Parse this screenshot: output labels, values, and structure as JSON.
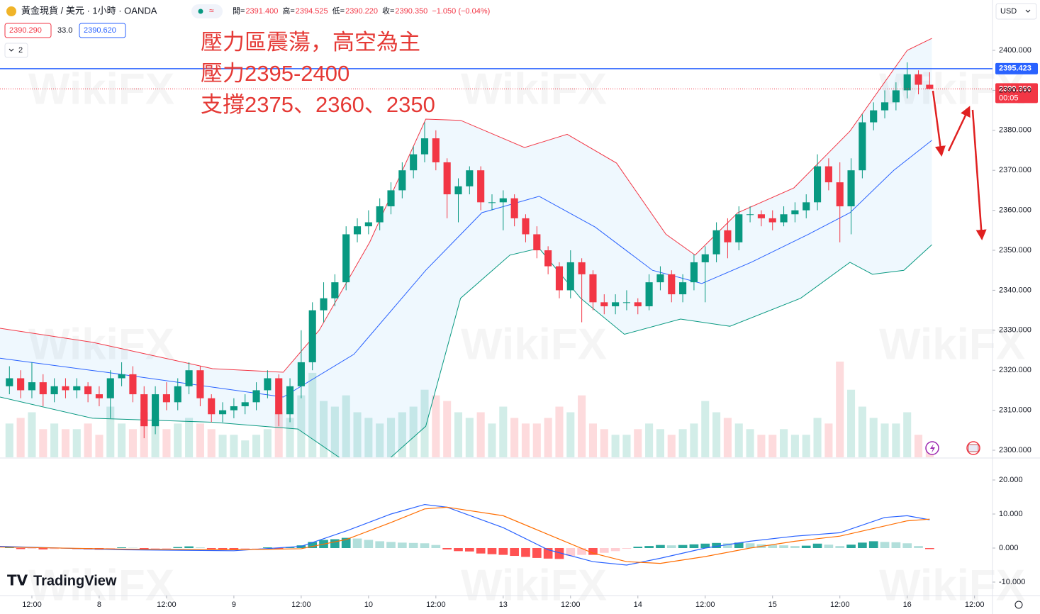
{
  "header": {
    "symbol": "黃金現貨 / 美元 · 1小時 · OANDA",
    "ohlc": [
      {
        "label": "開=",
        "value": "2391.400"
      },
      {
        "label": "高=",
        "value": "2394.525"
      },
      {
        "label": "低=",
        "value": "2390.220"
      },
      {
        "label": "收=",
        "value": "2390.350"
      }
    ],
    "change": "−1.050 (−0.04%)",
    "bid": "2390.290",
    "spread": "33.0",
    "ask": "2390.620",
    "indicators": "2",
    "currency": "USD",
    "brand": "TradingView",
    "watermark": "WikiFX"
  },
  "chart_data": [
    {
      "type": "candlestick",
      "annotations": [
        "壓力區震蕩，高空為主",
        "壓力2395-2400",
        "支撐2375、2360、2350"
      ],
      "up_color": "#089981",
      "down_color": "#f23645",
      "xlim": [
        -0.84,
        87.6
      ],
      "xticks": [
        {
          "value": 2,
          "label": "12:00"
        },
        {
          "value": 8,
          "label": "8"
        },
        {
          "value": 14,
          "label": "12:00"
        },
        {
          "value": 20,
          "label": "9"
        },
        {
          "value": 26,
          "label": "12:00"
        },
        {
          "value": 32,
          "label": "10"
        },
        {
          "value": 38,
          "label": "12:00"
        },
        {
          "value": 44,
          "label": "13"
        },
        {
          "value": 50,
          "label": "12:00"
        },
        {
          "value": 56,
          "label": "14"
        },
        {
          "value": 62,
          "label": "12:00"
        },
        {
          "value": 68,
          "label": "15"
        },
        {
          "value": 74,
          "label": "12:00"
        },
        {
          "value": 80,
          "label": "16"
        },
        {
          "value": 86,
          "label": "12:00"
        }
      ],
      "ylim": [
        2298.23,
        2412.59
      ],
      "yticks": [
        {
          "value": 2300,
          "label": "2300.000"
        },
        {
          "value": 2310,
          "label": "2310.000"
        },
        {
          "value": 2320,
          "label": "2320.000"
        },
        {
          "value": 2330,
          "label": "2330.000"
        },
        {
          "value": 2340,
          "label": "2340.000"
        },
        {
          "value": 2350,
          "label": "2350.000"
        },
        {
          "value": 2360,
          "label": "2360.000"
        },
        {
          "value": 2370,
          "label": "2370.000"
        },
        {
          "value": 2380,
          "label": "2380.000"
        },
        {
          "value": 2390,
          "label": "2390.000"
        },
        {
          "value": 2400,
          "label": "2400.000"
        }
      ],
      "open": [
        2316,
        2318,
        2315,
        2317,
        2314,
        2316,
        2315,
        2316,
        2314,
        2313,
        2318,
        2319,
        2314,
        2306,
        2314,
        2312,
        2316,
        2320,
        2313,
        2309,
        2310,
        2311,
        2312,
        2315,
        2318,
        2309,
        2316,
        2322,
        2335,
        2338,
        2342,
        2354,
        2356,
        2357,
        2361,
        2365,
        2370,
        2374,
        2378,
        2372,
        2364,
        2366,
        2370,
        2362,
        2362,
        2363,
        2358,
        2354,
        2350,
        2346,
        2340,
        2347,
        2344,
        2337,
        2336,
        2337,
        2337,
        2336,
        2342,
        2344,
        2339,
        2342,
        2347,
        2349,
        2355,
        2352,
        2359,
        2359,
        2358,
        2357,
        2359,
        2360,
        2362,
        2371,
        2367,
        2361,
        2370,
        2382,
        2385,
        2387,
        2390,
        2394,
        2391.4
      ],
      "high": [
        2321,
        2320,
        2322,
        2319,
        2318,
        2318,
        2318,
        2317,
        2316,
        2320,
        2322,
        2321,
        2316,
        2316,
        2317,
        2318,
        2322,
        2321,
        2314,
        2312,
        2313,
        2314,
        2317,
        2320,
        2319,
        2318,
        2330,
        2337,
        2342,
        2344,
        2356,
        2358,
        2360,
        2363,
        2367,
        2372,
        2376,
        2382,
        2380,
        2373,
        2368,
        2371,
        2371,
        2364,
        2365,
        2364,
        2359,
        2356,
        2351,
        2347,
        2350,
        2348,
        2345,
        2339,
        2339,
        2340,
        2338,
        2344,
        2346,
        2345,
        2344,
        2349,
        2351,
        2357,
        2358,
        2361,
        2361,
        2360,
        2360,
        2361,
        2362,
        2364,
        2374,
        2373,
        2372,
        2373,
        2384,
        2387,
        2390,
        2392,
        2397,
        2395,
        2394.525
      ],
      "low": [
        2314,
        2313,
        2313,
        2311,
        2312,
        2313,
        2313,
        2312,
        2311,
        2308,
        2316,
        2312,
        2303,
        2304,
        2310,
        2310,
        2314,
        2311,
        2307,
        2307,
        2308,
        2309,
        2310,
        2313,
        2306,
        2307,
        2313,
        2320,
        2332,
        2336,
        2340,
        2352,
        2354,
        2355,
        2359,
        2363,
        2368,
        2372,
        2370,
        2358,
        2357,
        2364,
        2360,
        2360,
        2355,
        2356,
        2352,
        2348,
        2344,
        2338,
        2338,
        2332,
        2335,
        2334,
        2334,
        2335,
        2334,
        2335,
        2340,
        2337,
        2337,
        2340,
        2337,
        2347,
        2348,
        2350,
        2357,
        2356,
        2355,
        2356,
        2357,
        2358,
        2360,
        2365,
        2352,
        2354,
        2368,
        2380,
        2383,
        2385,
        2388,
        2389,
        2390.22
      ],
      "close": [
        2318,
        2315,
        2317,
        2314,
        2316,
        2315,
        2316,
        2314,
        2313,
        2318,
        2319,
        2314,
        2306,
        2314,
        2312,
        2316,
        2320,
        2313,
        2309,
        2310,
        2311,
        2312,
        2315,
        2318,
        2309,
        2316,
        2322,
        2335,
        2338,
        2342,
        2354,
        2356,
        2357,
        2361,
        2365,
        2370,
        2374,
        2378,
        2372,
        2364,
        2366,
        2370,
        2362,
        2362,
        2363,
        2358,
        2354,
        2350,
        2346,
        2340,
        2347,
        2344,
        2337,
        2336,
        2337,
        2337,
        2336,
        2342,
        2344,
        2339,
        2342,
        2347,
        2349,
        2355,
        2352,
        2359,
        2359,
        2358,
        2357,
        2359,
        2360,
        2362,
        2371,
        2367,
        2361,
        2370,
        2382,
        2385,
        2387,
        2390,
        2394,
        2391.4,
        2390.35
      ],
      "volume": [
        30,
        35,
        40,
        25,
        30,
        25,
        25,
        30,
        20,
        45,
        30,
        25,
        40,
        35,
        25,
        30,
        35,
        30,
        25,
        20,
        20,
        15,
        20,
        25,
        40,
        35,
        55,
        75,
        50,
        45,
        55,
        40,
        35,
        30,
        35,
        40,
        45,
        60,
        55,
        50,
        40,
        35,
        40,
        30,
        45,
        35,
        30,
        30,
        35,
        45,
        40,
        55,
        30,
        25,
        20,
        20,
        25,
        30,
        25,
        20,
        25,
        30,
        50,
        40,
        35,
        30,
        25,
        20,
        20,
        25,
        20,
        20,
        35,
        30,
        85,
        60,
        45,
        35,
        30,
        30,
        40,
        20,
        10
      ],
      "volume_colors": [
        "rgba(8,153,129,0.18)",
        "rgba(242,54,69,0.18)"
      ],
      "band_fill": "rgba(33,150,243,0.07)",
      "bands": [
        {
          "color": "#f23645",
          "x": [
            -0.84,
            7.4,
            18.1,
            24.4,
            27.6,
            32.1,
            37.1,
            40.2,
            45.9,
            49.7,
            54.1,
            58.5,
            61.1,
            64.9,
            69.9,
            74.9,
            80,
            82.2
          ],
          "values": [
            2330.5,
            2327,
            2320.4,
            2319.5,
            2330,
            2352,
            2382.8,
            2382.5,
            2375.7,
            2379,
            2371.8,
            2354,
            2348.8,
            2359.4,
            2365.6,
            2379.8,
            2400,
            2403
          ]
        },
        {
          "color": "#2962ff",
          "x": [
            -0.84,
            8.6,
            24.4,
            30.7,
            37.1,
            42.1,
            47.2,
            52.2,
            57.3,
            61.7,
            66.1,
            71.2,
            74.9,
            78.8,
            82.2
          ],
          "values": [
            2323,
            2319.5,
            2313.3,
            2324,
            2345,
            2359.4,
            2363.5,
            2355.8,
            2345,
            2341.7,
            2347,
            2354,
            2359.4,
            2370,
            2377.5
          ]
        },
        {
          "color": "#089981",
          "x": [
            -0.84,
            7.4,
            18.1,
            25.7,
            29.5,
            33.9,
            37.1,
            40.2,
            44.6,
            47.2,
            50.9,
            54.8,
            59.8,
            64.2,
            70.5,
            74.9,
            76.9,
            79.7,
            82.2
          ],
          "values": [
            2313.3,
            2308,
            2307,
            2305.3,
            2298,
            2298,
            2306,
            2338,
            2348.8,
            2350.5,
            2338,
            2329,
            2332.8,
            2331,
            2338,
            2347,
            2344,
            2345,
            2351.4
          ]
        }
      ],
      "price_lines": [
        {
          "value": 2395.423,
          "label": "2395.423",
          "color": "#2962ff"
        },
        {
          "value": 2390.35,
          "label": "2390.350",
          "color": "#f23645",
          "countdown": "00:05"
        }
      ]
    },
    {
      "type": "macd",
      "xlim": [
        -0.84,
        87.6
      ],
      "ylim": [
        -13.96,
        26.04
      ],
      "yticks": [
        {
          "value": -10,
          "label": "-10.000"
        },
        {
          "value": 0,
          "label": "0.000"
        },
        {
          "value": 10,
          "label": "10.000"
        },
        {
          "value": 20,
          "label": "20.000"
        }
      ],
      "histogram": [
        0.2,
        -0.3,
        -0.2,
        -0.4,
        -0.3,
        -0.2,
        -0.3,
        -0.4,
        -0.5,
        -0.2,
        0.2,
        0.1,
        -0.5,
        -0.3,
        -0.2,
        0.3,
        0.5,
        0.2,
        -0.3,
        -0.4,
        -0.4,
        -0.3,
        -0.1,
        0.2,
        -0.3,
        0.2,
        0.8,
        1.8,
        2.4,
        2.6,
        3.0,
        2.8,
        2.4,
        2.0,
        1.8,
        1.6,
        1.5,
        1.4,
        0.9,
        -0.4,
        -0.9,
        -1.0,
        -1.6,
        -1.8,
        -2.0,
        -2.3,
        -2.6,
        -2.9,
        -3.1,
        -3.2,
        -2.3,
        -2.0,
        -2.0,
        -1.4,
        -0.9,
        -0.2,
        0.4,
        0.6,
        0.9,
        0.8,
        0.9,
        1.1,
        1.3,
        1.5,
        1.4,
        1.6,
        1.4,
        1.1,
        0.9,
        0.8,
        0.6,
        0.7,
        1.3,
        1.0,
        0.6,
        1.0,
        1.6,
        2.0,
        1.8,
        1.7,
        1.4,
        0.6,
        -0.3
      ],
      "histogram_colors": {
        "pos_up": "#26a69a",
        "pos_down": "#b2dfdb",
        "neg_down": "#ff5252",
        "neg_up": "#ffcdd2"
      },
      "series": [
        {
          "color": "#2962ff",
          "x": [
            -0.84,
            10,
            20,
            26,
            30,
            34,
            37,
            39,
            44,
            48,
            52,
            55,
            58,
            62,
            66,
            70,
            74,
            78,
            80,
            82
          ],
          "values": [
            0.5,
            -0.5,
            -0.8,
            0.5,
            5,
            10,
            12.8,
            12,
            6,
            -0.5,
            -4,
            -5,
            -3,
            0,
            2,
            3.5,
            4.5,
            9,
            9.5,
            8.3
          ]
        },
        {
          "color": "#ff6d00",
          "x": [
            -0.84,
            10,
            20,
            26,
            30,
            34,
            37,
            39,
            44,
            48,
            52,
            55,
            58,
            62,
            66,
            70,
            74,
            78,
            80,
            82
          ],
          "values": [
            0.3,
            -0.3,
            -0.5,
            -0.2,
            2.5,
            7.5,
            11.5,
            12,
            9.5,
            4,
            -1.5,
            -4,
            -4.5,
            -2.5,
            0,
            2,
            3.5,
            6.5,
            8,
            8.5
          ]
        }
      ]
    }
  ]
}
